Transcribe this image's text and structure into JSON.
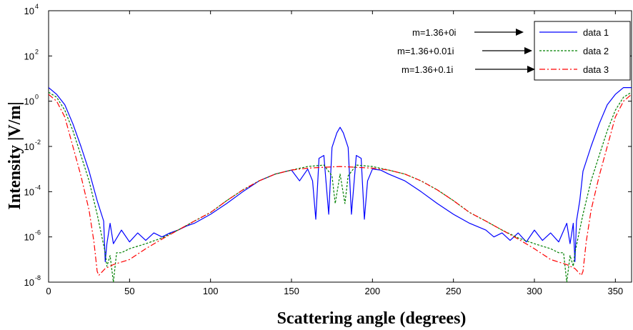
{
  "chart_data": {
    "type": "line",
    "xlabel": "Scattering angle (degrees)",
    "ylabel": "Intensity |V/m|",
    "xlim": [
      0,
      360
    ],
    "ylim_log10": [
      -8,
      4
    ],
    "yscale": "log",
    "x_ticks": [
      0,
      50,
      100,
      150,
      200,
      250,
      300,
      350
    ],
    "y_ticks": [
      {
        "base": "10",
        "exp": "-8",
        "log": -8
      },
      {
        "base": "10",
        "exp": "-6",
        "log": -6
      },
      {
        "base": "10",
        "exp": "-4",
        "log": -4
      },
      {
        "base": "10",
        "exp": "-2",
        "log": -2
      },
      {
        "base": "10",
        "exp": "0",
        "log": 0
      },
      {
        "base": "10",
        "exp": "2",
        "log": 2
      },
      {
        "base": "10",
        "exp": "4",
        "log": 4
      }
    ],
    "legend_position": "top-right",
    "series": [
      {
        "name": "data 1",
        "color": "#0000ff",
        "style": "solid",
        "annotation": "m=1.36+0i",
        "x": [
          0,
          5,
          10,
          15,
          20,
          25,
          30,
          34,
          35,
          36,
          38,
          40,
          45,
          50,
          55,
          60,
          65,
          70,
          75,
          80,
          85,
          90,
          100,
          110,
          120,
          130,
          140,
          150,
          155,
          160,
          163,
          165,
          167,
          170,
          173,
          175,
          178,
          180,
          182,
          185,
          187,
          190,
          193,
          195,
          197,
          200,
          205,
          210,
          220,
          230,
          240,
          250,
          260,
          270,
          275,
          280,
          285,
          290,
          295,
          300,
          305,
          310,
          315,
          320,
          322,
          324,
          325,
          326,
          328,
          330,
          335,
          340,
          345,
          350,
          355,
          360
        ],
        "y": [
          4,
          2,
          0.7,
          0.1,
          0.01,
          0.0008,
          4e-05,
          5e-06,
          8e-08,
          5e-07,
          4e-06,
          5e-07,
          2e-06,
          6e-07,
          1.5e-06,
          7e-07,
          1.5e-06,
          1e-06,
          1.5e-06,
          2e-06,
          3e-06,
          4e-06,
          1e-05,
          3e-05,
          0.0001,
          0.0003,
          0.0006,
          0.0009,
          0.0003,
          0.001,
          0.0003,
          6e-06,
          0.003,
          0.004,
          1e-05,
          0.009,
          0.04,
          0.07,
          0.04,
          0.009,
          1e-05,
          0.004,
          0.003,
          6e-06,
          0.0003,
          0.001,
          0.0009,
          0.0006,
          0.0003,
          0.0001,
          3e-05,
          1e-05,
          4e-06,
          2e-06,
          1e-06,
          1.5e-06,
          7e-07,
          1.5e-06,
          6e-07,
          2e-06,
          7e-07,
          1.5e-06,
          6e-07,
          4e-06,
          5e-07,
          4e-06,
          8e-08,
          5e-06,
          4e-05,
          0.0008,
          0.01,
          0.1,
          0.7,
          2,
          4,
          4
        ]
      },
      {
        "name": "data 2",
        "color": "#008000",
        "style": "dotted",
        "annotation": "m=1.36+0.01i",
        "x": [
          0,
          5,
          10,
          15,
          20,
          25,
          30,
          35,
          36,
          38,
          40,
          42,
          45,
          50,
          60,
          70,
          80,
          90,
          100,
          110,
          120,
          130,
          140,
          150,
          160,
          170,
          175,
          177,
          180,
          183,
          185,
          190,
          200,
          210,
          220,
          230,
          240,
          250,
          260,
          270,
          280,
          290,
          300,
          310,
          315,
          318,
          320,
          322,
          324,
          325,
          330,
          335,
          340,
          345,
          350,
          355,
          360
        ],
        "y": [
          2.5,
          1.5,
          0.4,
          0.05,
          0.004,
          0.0003,
          1e-05,
          2e-07,
          5e-08,
          1.5e-07,
          1e-08,
          2e-07,
          2e-07,
          3e-07,
          5e-07,
          9e-07,
          2e-06,
          5e-06,
          1.2e-05,
          4e-05,
          0.00012,
          0.0003,
          0.0006,
          0.0009,
          0.0013,
          0.0015,
          0.0005,
          3e-05,
          0.0006,
          3e-05,
          0.0005,
          0.0015,
          0.0013,
          0.0009,
          0.0006,
          0.0003,
          0.00012,
          4e-05,
          1.2e-05,
          5e-06,
          2e-06,
          9e-07,
          5e-07,
          3e-07,
          2e-07,
          2e-07,
          1e-08,
          1.5e-07,
          5e-08,
          2e-07,
          1e-05,
          0.0003,
          0.004,
          0.05,
          0.4,
          1.5,
          2.5
        ]
      },
      {
        "name": "data 3",
        "color": "#ff0000",
        "style": "dashdot",
        "annotation": "m=1.36+0.1i",
        "x": [
          0,
          5,
          10,
          15,
          20,
          25,
          28,
          30,
          31,
          35,
          40,
          50,
          60,
          70,
          80,
          90,
          100,
          110,
          120,
          130,
          140,
          150,
          160,
          170,
          180,
          190,
          200,
          210,
          220,
          230,
          240,
          250,
          260,
          270,
          280,
          290,
          300,
          310,
          320,
          325,
          329,
          330,
          332,
          335,
          340,
          345,
          350,
          355,
          360
        ],
        "y": [
          2,
          1,
          0.2,
          0.01,
          0.0005,
          1.5e-05,
          6e-07,
          3e-08,
          2e-08,
          4e-08,
          6e-08,
          1e-07,
          3e-07,
          8e-07,
          2e-06,
          5e-06,
          1.2e-05,
          4e-05,
          0.00012,
          0.0003,
          0.0006,
          0.0009,
          0.0011,
          0.0012,
          0.0013,
          0.0012,
          0.0011,
          0.0009,
          0.0006,
          0.0003,
          0.00012,
          4e-05,
          1.2e-05,
          5e-06,
          2e-06,
          8e-07,
          3e-07,
          1e-07,
          6e-08,
          4e-08,
          2e-08,
          3e-08,
          6e-07,
          1.5e-05,
          0.0005,
          0.01,
          0.2,
          1,
          2
        ]
      }
    ]
  }
}
